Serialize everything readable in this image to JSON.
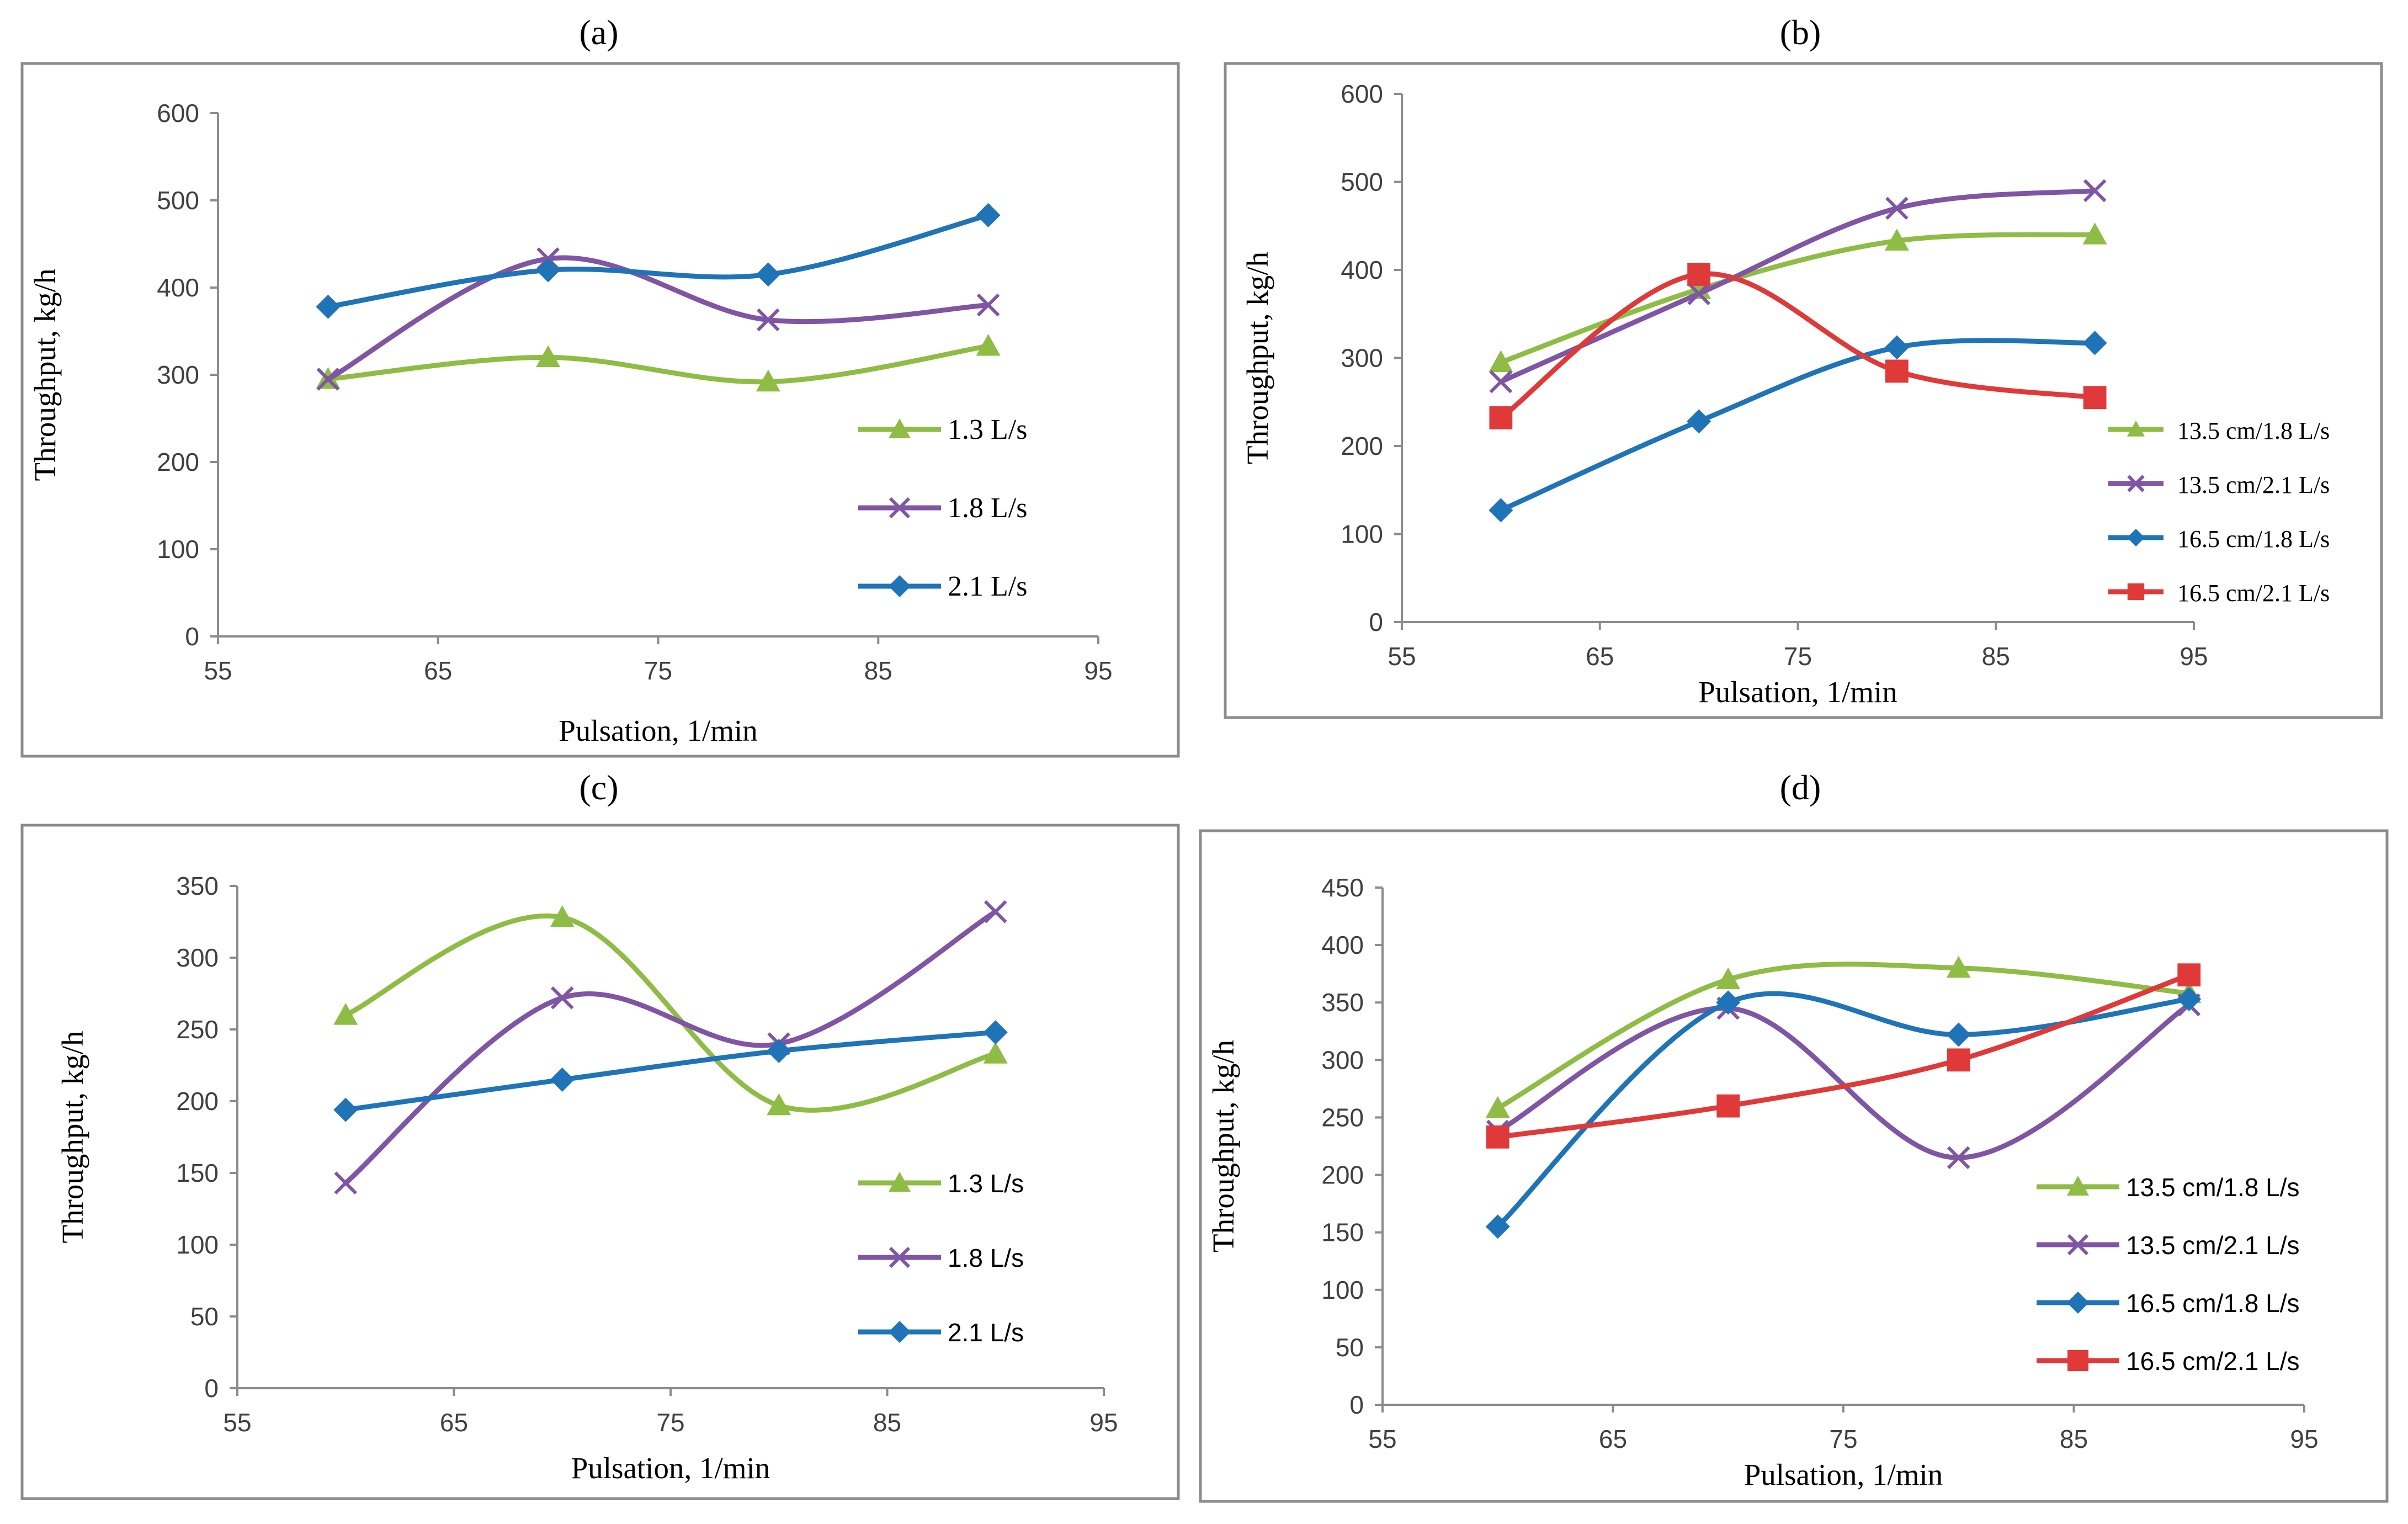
{
  "colors": {
    "green": "#8ebc45",
    "purple": "#7f55a4",
    "blue": "#1f74b8",
    "red": "#e0393a",
    "axis": "#8c8c8c",
    "text": "#404040"
  },
  "chart_data": [
    {
      "id": "a",
      "type": "line",
      "title": "(a)",
      "xlabel": "Pulsation, 1/min",
      "ylabel": "Throughput, kg/h",
      "xlim": [
        55,
        95
      ],
      "ylim": [
        0,
        600
      ],
      "x_ticks": [
        "55",
        "65",
        "75",
        "85",
        "95"
      ],
      "y_ticks": [
        "0",
        "100",
        "200",
        "300",
        "400",
        "500",
        "600"
      ],
      "legend_position": "right",
      "x": [
        60,
        70,
        80,
        90
      ],
      "series": [
        {
          "name": "1.3 L/s",
          "color_key": "green",
          "marker": "triangle",
          "values": [
            295,
            320,
            292,
            333
          ]
        },
        {
          "name": "1.8  L/s",
          "color_key": "purple",
          "marker": "x",
          "values": [
            295,
            433,
            363,
            380
          ]
        },
        {
          "name": "2.1  L/s",
          "color_key": "blue",
          "marker": "diamond",
          "values": [
            378,
            420,
            415,
            483
          ]
        }
      ]
    },
    {
      "id": "b",
      "type": "line",
      "title": "(b)",
      "xlabel": "Pulsation, 1/min",
      "ylabel": "Throughput, kg/h",
      "xlim": [
        55,
        95
      ],
      "ylim": [
        0,
        600
      ],
      "x_ticks": [
        "55",
        "65",
        "75",
        "85",
        "95"
      ],
      "y_ticks": [
        "0",
        "100",
        "200",
        "300",
        "400",
        "500",
        "600"
      ],
      "legend_position": "right",
      "x": [
        60,
        70,
        80,
        90
      ],
      "series": [
        {
          "name": "13.5 cm/1.8 L/s",
          "color_key": "green",
          "marker": "triangle",
          "values": [
            295,
            378,
            433,
            440
          ]
        },
        {
          "name": "13.5 cm/2.1 L/s",
          "color_key": "purple",
          "marker": "x",
          "values": [
            273,
            373,
            470,
            490
          ]
        },
        {
          "name": "16.5 cm/1.8 L/s",
          "color_key": "blue",
          "marker": "diamond",
          "values": [
            127,
            228,
            312,
            317
          ]
        },
        {
          "name": "16.5 cm/2.1 L/s",
          "color_key": "red",
          "marker": "square",
          "values": [
            232,
            395,
            285,
            255
          ]
        }
      ]
    },
    {
      "id": "c",
      "type": "line",
      "title": "(c)",
      "xlabel": "Pulsation, 1/min",
      "ylabel": "Throughput, kg/h",
      "xlim": [
        55,
        95
      ],
      "ylim": [
        0,
        350
      ],
      "x_ticks": [
        "55",
        "65",
        "75",
        "85",
        "95"
      ],
      "y_ticks": [
        "0",
        "50",
        "100",
        "150",
        "200",
        "250",
        "300",
        "350"
      ],
      "legend_position": "right",
      "x": [
        60,
        70,
        80,
        90
      ],
      "series": [
        {
          "name": "1.3 L/s",
          "color_key": "green",
          "marker": "triangle",
          "values": [
            260,
            328,
            197,
            233
          ]
        },
        {
          "name": "1.8  L/s",
          "color_key": "purple",
          "marker": "x",
          "values": [
            143,
            272,
            240,
            332
          ]
        },
        {
          "name": "2.1  L/s",
          "color_key": "blue",
          "marker": "diamond",
          "values": [
            194,
            215,
            235,
            248
          ]
        }
      ]
    },
    {
      "id": "d",
      "type": "line",
      "title": "(d)",
      "xlabel": "Pulsation, 1/min",
      "ylabel": "Throughput, kg/h",
      "xlim": [
        55,
        95
      ],
      "ylim": [
        0,
        450
      ],
      "x_ticks": [
        "55",
        "65",
        "75",
        "85",
        "95"
      ],
      "y_ticks": [
        "0",
        "50",
        "100",
        "150",
        "200",
        "250",
        "300",
        "350",
        "400",
        "450"
      ],
      "legend_position": "bottom-right",
      "x": [
        60,
        70,
        80,
        90
      ],
      "series": [
        {
          "name": "13.5 cm/1.8 L/s",
          "color_key": "green",
          "marker": "triangle",
          "values": [
            258,
            370,
            380,
            358
          ]
        },
        {
          "name": "13.5 cm/2.1 L/s",
          "color_key": "purple",
          "marker": "x",
          "values": [
            238,
            345,
            215,
            348
          ]
        },
        {
          "name": "16.5 cm/1.8 L/s",
          "color_key": "blue",
          "marker": "diamond",
          "values": [
            155,
            350,
            322,
            353
          ]
        },
        {
          "name": "16.5 cm/2.1 L/s",
          "color_key": "red",
          "marker": "square",
          "values": [
            233,
            260,
            300,
            374
          ]
        }
      ]
    }
  ]
}
